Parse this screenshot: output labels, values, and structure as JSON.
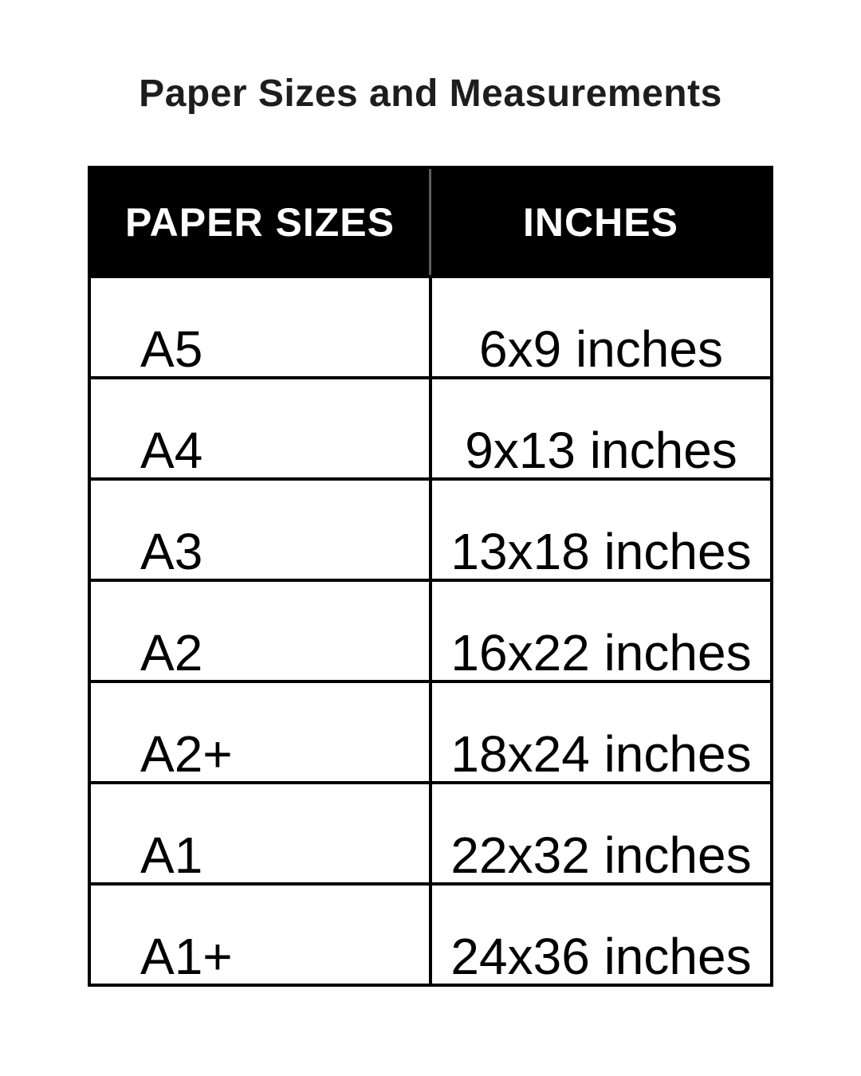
{
  "page": {
    "title": "Paper Sizes and Measurements",
    "background_color": "#ffffff"
  },
  "table": {
    "headers": [
      {
        "label": "PAPER SIZES"
      },
      {
        "label": "INCHES"
      }
    ],
    "rows": [
      {
        "size": "A5",
        "inches": "6x9 inches"
      },
      {
        "size": "A4",
        "inches": "9x13 inches"
      },
      {
        "size": "A3",
        "inches": "13x18 inches"
      },
      {
        "size": "A2",
        "inches": "16x22 inches"
      },
      {
        "size": "A2+",
        "inches": "18x24 inches"
      },
      {
        "size": "A1",
        "inches": "22x32 inches"
      },
      {
        "size": "A1+",
        "inches": "24x36 inches"
      }
    ],
    "colors": {
      "header_background": "#000000",
      "header_text": "#ffffff",
      "border": "#000000",
      "body_text": "#000000",
      "header_divider": "#5f5f5f"
    }
  }
}
